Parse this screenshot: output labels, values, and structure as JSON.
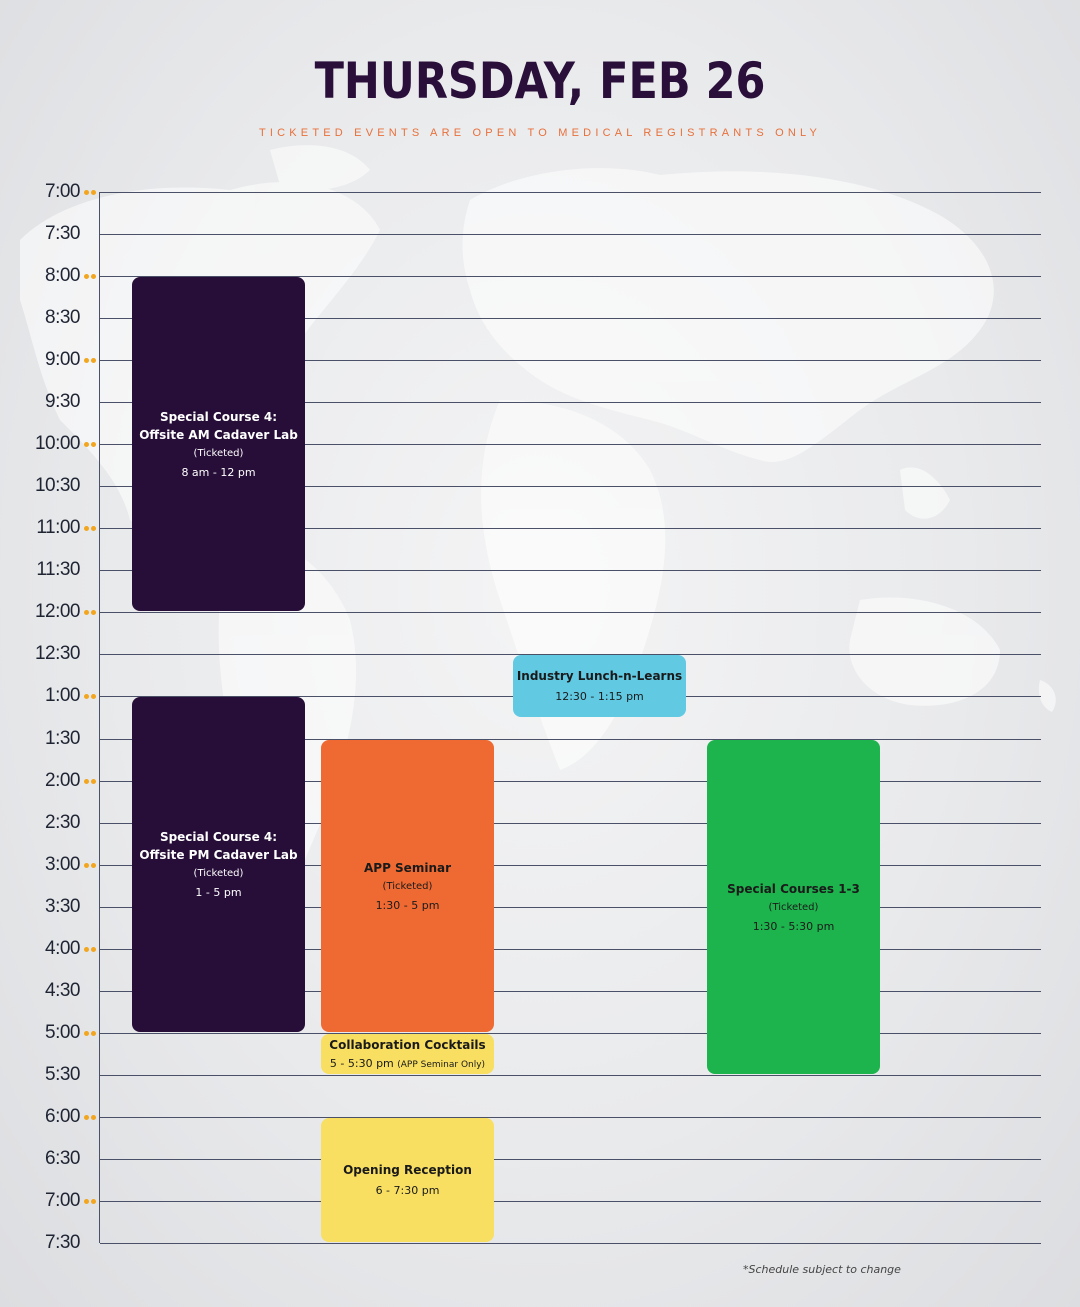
{
  "header": {
    "title": "THURSDAY, FEB 26",
    "subtitle": "TICKETED EVENTS ARE OPEN TO MEDICAL REGISTRANTS ONLY"
  },
  "timeline": {
    "slots": [
      "7:00",
      "7:30",
      "8:00",
      "8:30",
      "9:00",
      "9:30",
      "10:00",
      "10:30",
      "11:00",
      "11:30",
      "12:00",
      "12:30",
      "1:00",
      "1:30",
      "2:00",
      "2:30",
      "3:00",
      "3:30",
      "4:00",
      "4:30",
      "5:00",
      "5:30",
      "6:00",
      "6:30",
      "7:00",
      "7:30"
    ],
    "hour_marker_color": "#f2a51d"
  },
  "events": [
    {
      "id": "am-cadaver",
      "title": "Special Course 4:",
      "title2": "Offsite AM Cadaver Lab",
      "note": "(Ticketed)",
      "time": "8 am - 12 pm",
      "start": 2,
      "end": 10,
      "column": 0,
      "color": "#270e38"
    },
    {
      "id": "pm-cadaver",
      "title": "Special Course 4:",
      "title2": "Offsite PM Cadaver Lab",
      "note": "(Ticketed)",
      "time": "1 - 5 pm",
      "start": 12,
      "end": 20,
      "column": 0,
      "color": "#270e38"
    },
    {
      "id": "app-seminar",
      "title": "APP Seminar",
      "title2": "",
      "note": "(Ticketed)",
      "time": "1:30 - 5 pm",
      "start": 13,
      "end": 20,
      "column": 1,
      "color": "#ef6a32"
    },
    {
      "id": "collab-cocktails",
      "title": "Collaboration Cocktails",
      "title2": "",
      "note": "",
      "time": "5 - 5:30 pm",
      "time_extra": "(APP Seminar Only)",
      "start": 20,
      "end": 21,
      "column": 1,
      "color": "#f8df62"
    },
    {
      "id": "opening-reception",
      "title": "Opening Reception",
      "title2": "",
      "note": "",
      "time": "6 - 7:30 pm",
      "start": 22,
      "end": 25,
      "column": 1,
      "color": "#f8df62"
    },
    {
      "id": "lunch-learns",
      "title": "Industry Lunch-n-Learns",
      "title2": "",
      "note": "",
      "time": "12:30 - 1:15 pm",
      "start": 11,
      "end": 12.5,
      "column": 2,
      "color": "#62c9e3"
    },
    {
      "id": "special-courses",
      "title": "Special Courses 1-3",
      "title2": "",
      "note": "(Ticketed)",
      "time": "1:30 - 5:30 pm",
      "start": 13,
      "end": 21,
      "column": 3,
      "color": "#1db34d"
    }
  ],
  "footnote": "*Schedule subject to change"
}
